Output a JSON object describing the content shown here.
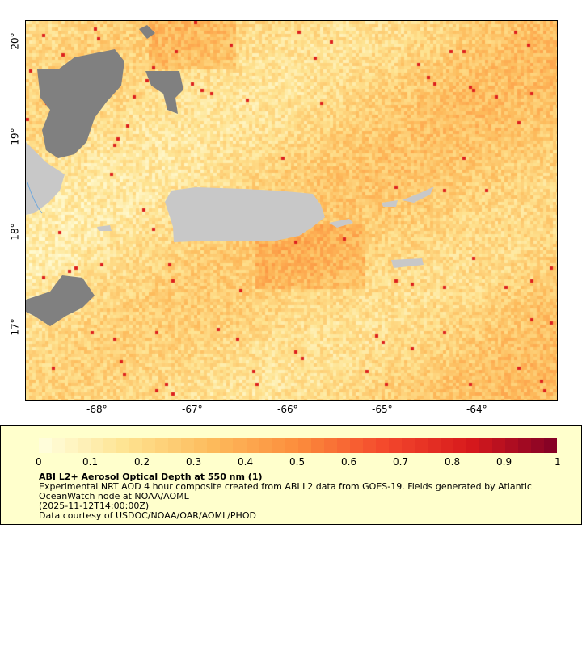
{
  "map": {
    "x_ticks": [
      "-68°",
      "-67°",
      "-66°",
      "-65°",
      "-64°"
    ],
    "y_ticks": [
      "20°",
      "19°",
      "18°",
      "17°"
    ],
    "colors": {
      "land": "#c8c8c8",
      "no_data": "#808080",
      "river": "#6fa8dc"
    }
  },
  "legend": {
    "colorbar_ticks": [
      "0",
      "0.1",
      "0.2",
      "0.3",
      "0.4",
      "0.5",
      "0.6",
      "0.7",
      "0.8",
      "0.9",
      "1"
    ],
    "colorbar_range": [
      0,
      1
    ],
    "colormap_stops": [
      "#ffffe0",
      "#fee391",
      "#fdbb5c",
      "#fc8d3c",
      "#f4482c",
      "#d7191c",
      "#800026"
    ],
    "title": "ABI L2+ Aerosol Optical Depth at 550 nm (1)",
    "line1": "Experimental NRT AOD 4 hour composite created from ABI L2 data from GOES-19. Fields generated by Atlantic",
    "line2": "OceanWatch node at NOAA/AOML",
    "line3": "(2025-11-12T14:00:00Z)",
    "line4": "Data courtesy of USDOC/NOAA/OAR/AOML/PHOD"
  }
}
